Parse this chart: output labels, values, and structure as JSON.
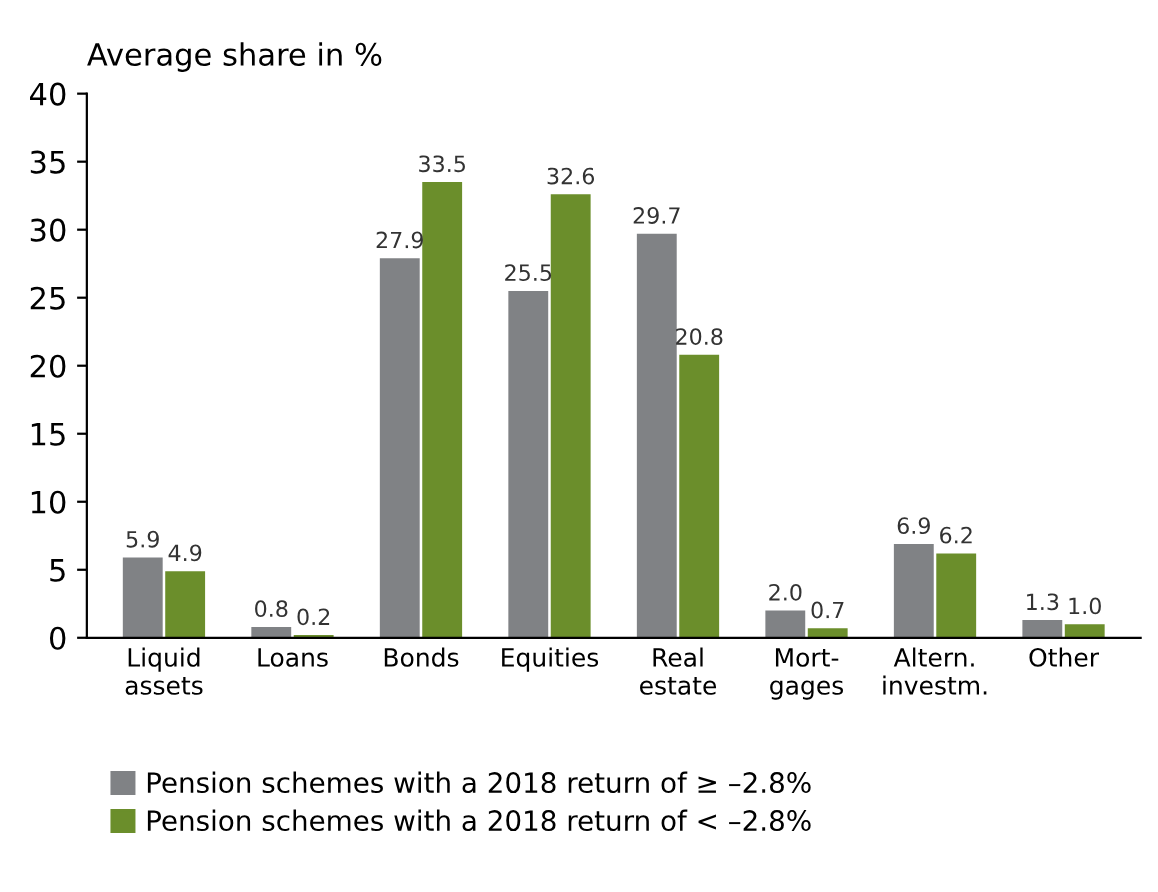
{
  "chart_data": {
    "type": "bar",
    "ylabel": "Average share in %",
    "categories": [
      "Liquid\nassets",
      "Loans",
      "Bonds",
      "Equities",
      "Real\nestate",
      "Mort-\ngages",
      "Altern.\ninvestm.",
      "Other"
    ],
    "series": [
      {
        "name": "Pension schemes with a 2018 return of ≥ –2.8%",
        "color": "#808285",
        "values": [
          5.9,
          0.8,
          27.9,
          25.5,
          29.7,
          2.0,
          6.9,
          1.3
        ],
        "value_labels": [
          "5.9",
          "0.8",
          "27.9",
          "25.5",
          "29.7",
          "2.0",
          "6.9",
          "1.3"
        ]
      },
      {
        "name": "Pension schemes with a 2018 return of < –2.8%",
        "color": "#6b8e2b",
        "values": [
          4.9,
          0.2,
          33.5,
          32.6,
          20.8,
          0.7,
          6.2,
          1.0
        ],
        "value_labels": [
          "4.9",
          "0.2",
          "33.5",
          "32.6",
          "20.8",
          "0.7",
          "6.2",
          "1.0"
        ]
      }
    ],
    "ylim": [
      0,
      40
    ],
    "yticks": [
      0,
      5,
      10,
      15,
      20,
      25,
      30,
      35,
      40
    ],
    "grid": false,
    "legend": "bottom"
  }
}
